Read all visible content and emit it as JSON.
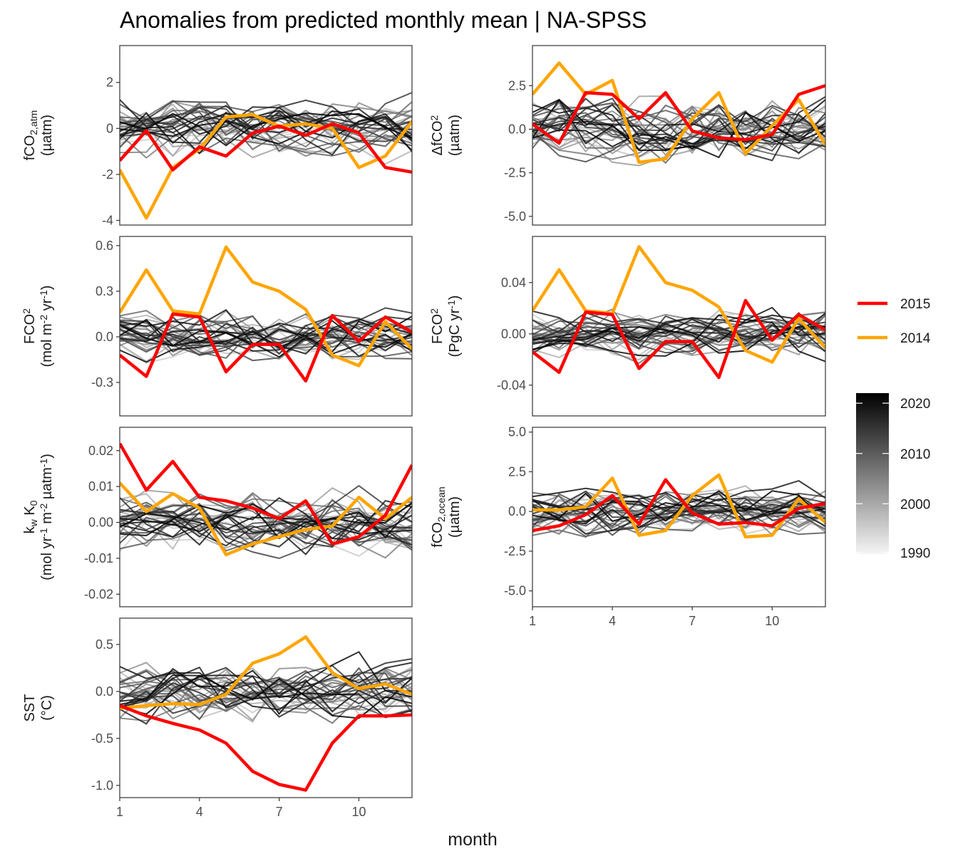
{
  "title": "Anomalies from predicted monthly mean | NA-SPSS",
  "xlabel": "month",
  "legend": {
    "lines": [
      {
        "label": "2015",
        "color": "#ff0000"
      },
      {
        "label": "2014",
        "color": "#ffa500"
      }
    ],
    "colorbar": {
      "ticks": [
        "2020",
        "2010",
        "2000",
        "1990"
      ],
      "range": [
        1990,
        2022
      ],
      "from_color": "#f5f5f5",
      "to_color": "#000000"
    }
  },
  "chart_data": [
    {
      "type": "line",
      "ylabel_lines": [
        [
          "fCO",
          "2,atm",
          ""
        ],
        [
          "(µatm)"
        ]
      ],
      "x": [
        1,
        2,
        3,
        4,
        5,
        6,
        7,
        8,
        9,
        10,
        11,
        12
      ],
      "xlim": [
        1,
        12
      ],
      "xticks": [
        1,
        4,
        7,
        10
      ],
      "ylim": [
        -4.2,
        3.6
      ],
      "yticks": [
        2,
        0,
        -2,
        -4
      ],
      "ytick_labels": [
        "2",
        "0",
        "-2",
        "-4"
      ],
      "series": [
        {
          "name": "2015",
          "color": "#ff0000",
          "values": [
            -1.4,
            -0.1,
            -1.8,
            -0.8,
            -1.2,
            -0.2,
            0.1,
            -0.3,
            0.2,
            -0.2,
            -1.7,
            -1.9
          ]
        },
        {
          "name": "2014",
          "color": "#ffa500",
          "values": [
            -1.8,
            -3.9,
            -1.7,
            -0.9,
            0.5,
            0.6,
            0.1,
            0.2,
            0.0,
            -1.7,
            -1.2,
            0.3
          ]
        }
      ],
      "background_spread": 1.1,
      "background_seed": 11
    },
    {
      "type": "line",
      "ylabel_lines": [
        [
          "ΔfCO",
          "",
          "2"
        ],
        [
          "(µatm)"
        ]
      ],
      "x": [
        1,
        2,
        3,
        4,
        5,
        6,
        7,
        8,
        9,
        10,
        11,
        12
      ],
      "xlim": [
        1,
        12
      ],
      "xticks": [
        1,
        4,
        7,
        10
      ],
      "ylim": [
        -5.5,
        4.8
      ],
      "yticks": [
        2.5,
        0,
        -2.5,
        -5
      ],
      "ytick_labels": [
        "2.5",
        "0.0",
        "-2.5",
        "-5.0"
      ],
      "series": [
        {
          "name": "2015",
          "color": "#ff0000",
          "values": [
            0.3,
            -0.8,
            2.1,
            2.0,
            0.6,
            2.1,
            -0.1,
            -0.5,
            -0.6,
            -0.3,
            2.0,
            2.5
          ]
        },
        {
          "name": "2014",
          "color": "#ffa500",
          "values": [
            2.0,
            3.8,
            2.0,
            2.8,
            -1.9,
            -1.7,
            0.6,
            2.1,
            -1.4,
            0.2,
            1.7,
            -0.9
          ]
        }
      ],
      "background_spread": 1.6,
      "background_seed": 23
    },
    {
      "type": "line",
      "ylabel_lines": [
        [
          "FCO",
          "",
          "2"
        ],
        [
          "(mol m",
          "",
          "-2",
          " yr",
          "",
          "-1",
          ")"
        ]
      ],
      "x": [
        1,
        2,
        3,
        4,
        5,
        6,
        7,
        8,
        9,
        10,
        11,
        12
      ],
      "xlim": [
        1,
        12
      ],
      "xticks": [
        1,
        4,
        7,
        10
      ],
      "ylim": [
        -0.52,
        0.66
      ],
      "yticks": [
        0.6,
        0.3,
        0,
        -0.3
      ],
      "ytick_labels": [
        "0.6",
        "0.3",
        "0.0",
        "-0.3"
      ],
      "series": [
        {
          "name": "2015",
          "color": "#ff0000",
          "values": [
            -0.12,
            -0.26,
            0.15,
            0.13,
            -0.23,
            -0.05,
            -0.05,
            -0.29,
            0.14,
            -0.03,
            0.13,
            0.03
          ]
        },
        {
          "name": "2014",
          "color": "#ffa500",
          "values": [
            0.16,
            0.44,
            0.17,
            0.15,
            0.59,
            0.36,
            0.3,
            0.18,
            -0.12,
            -0.19,
            0.1,
            -0.08
          ]
        }
      ],
      "background_spread": 0.14,
      "background_seed": 37
    },
    {
      "type": "line",
      "ylabel_lines": [
        [
          "FCO",
          "",
          "2"
        ],
        [
          "(PgC yr",
          "",
          "-1",
          ")"
        ]
      ],
      "x": [
        1,
        2,
        3,
        4,
        5,
        6,
        7,
        8,
        9,
        10,
        11,
        12
      ],
      "xlim": [
        1,
        12
      ],
      "xticks": [
        1,
        4,
        7,
        10
      ],
      "ylim": [
        -0.064,
        0.076
      ],
      "yticks": [
        0.04,
        0,
        -0.04
      ],
      "ytick_labels": [
        "0.04",
        "0.00",
        "-0.04"
      ],
      "series": [
        {
          "name": "2015",
          "color": "#ff0000",
          "values": [
            -0.014,
            -0.03,
            0.017,
            0.015,
            -0.027,
            -0.006,
            -0.006,
            -0.034,
            0.026,
            -0.005,
            0.015,
            0.003
          ]
        },
        {
          "name": "2014",
          "color": "#ffa500",
          "values": [
            0.018,
            0.05,
            0.018,
            0.016,
            0.068,
            0.04,
            0.034,
            0.021,
            -0.013,
            -0.022,
            0.012,
            -0.011
          ]
        }
      ],
      "background_spread": 0.016,
      "background_seed": 41
    },
    {
      "type": "line",
      "ylabel_lines": [
        [
          "k",
          "w",
          "",
          " K",
          "0",
          ""
        ],
        [
          "(mol yr",
          "",
          "-1",
          " m",
          "",
          "-2",
          " µatm",
          "",
          "-1",
          ")"
        ]
      ],
      "x": [
        1,
        2,
        3,
        4,
        5,
        6,
        7,
        8,
        9,
        10,
        11,
        12
      ],
      "xlim": [
        1,
        12
      ],
      "xticks": [
        1,
        4,
        7,
        10
      ],
      "ylim": [
        -0.0235,
        0.0265
      ],
      "yticks": [
        0.02,
        0.01,
        0,
        -0.01,
        -0.02
      ],
      "ytick_labels": [
        "0.02",
        "0.01",
        "0.00",
        "-0.01",
        "-0.02"
      ],
      "series": [
        {
          "name": "2015",
          "color": "#ff0000",
          "values": [
            0.022,
            0.009,
            0.017,
            0.007,
            0.006,
            0.004,
            0.001,
            0.006,
            -0.006,
            -0.004,
            0.002,
            0.016
          ]
        },
        {
          "name": "2014",
          "color": "#ffa500",
          "values": [
            0.011,
            0.003,
            0.008,
            0.004,
            -0.009,
            -0.006,
            -0.004,
            -0.002,
            -0.001,
            0.007,
            0.001,
            0.007
          ]
        }
      ],
      "background_spread": 0.0075,
      "background_seed": 53
    },
    {
      "type": "line",
      "ylabel_lines": [
        [
          "fCO",
          "2,ocean",
          ""
        ],
        [
          "(µatm)"
        ]
      ],
      "x": [
        1,
        2,
        3,
        4,
        5,
        6,
        7,
        8,
        9,
        10,
        11,
        12
      ],
      "xlim": [
        1,
        12
      ],
      "xticks": [
        1,
        4,
        7,
        10
      ],
      "xtick_labels": [
        "1",
        "4",
        "7",
        "10"
      ],
      "ylim": [
        -6.0,
        5.3
      ],
      "yticks": [
        5,
        2.5,
        0,
        -2.5,
        -5
      ],
      "ytick_labels": [
        "5.0",
        "2.5",
        "0.0",
        "-2.5",
        "-5.0"
      ],
      "series": [
        {
          "name": "2015",
          "color": "#ff0000",
          "values": [
            -1.2,
            -0.9,
            -0.2,
            1.0,
            -0.8,
            2.0,
            -0.1,
            -0.8,
            -0.7,
            -0.9,
            0.2,
            0.5
          ]
        },
        {
          "name": "2014",
          "color": "#ffa500",
          "values": [
            0.1,
            0.1,
            0.3,
            2.1,
            -1.5,
            -1.2,
            1.0,
            2.3,
            -1.6,
            -1.5,
            0.8,
            -0.7
          ]
        }
      ],
      "background_spread": 1.3,
      "background_seed": 67
    },
    {
      "type": "line",
      "ylabel_lines": [
        [
          "SST"
        ],
        [
          "(°C)"
        ]
      ],
      "x": [
        1,
        2,
        3,
        4,
        5,
        6,
        7,
        8,
        9,
        10,
        11,
        12
      ],
      "xlim": [
        1,
        12
      ],
      "xticks": [
        1,
        4,
        7,
        10
      ],
      "xtick_labels": [
        "1",
        "4",
        "7",
        "10"
      ],
      "ylim": [
        -1.13,
        0.78
      ],
      "yticks": [
        0.5,
        0,
        -0.5,
        -1
      ],
      "ytick_labels": [
        "0.5",
        "0.0",
        "-0.5",
        "-1.0"
      ],
      "series": [
        {
          "name": "2015",
          "color": "#ff0000",
          "values": [
            -0.15,
            -0.26,
            -0.34,
            -0.41,
            -0.55,
            -0.85,
            -0.99,
            -1.05,
            -0.55,
            -0.26,
            -0.26,
            -0.25
          ]
        },
        {
          "name": "2014",
          "color": "#ffa500",
          "values": [
            -0.18,
            -0.15,
            -0.13,
            -0.14,
            -0.03,
            0.3,
            0.4,
            0.58,
            0.2,
            0.03,
            0.08,
            -0.03
          ]
        }
      ],
      "background_spread": 0.28,
      "background_seed": 79
    }
  ]
}
